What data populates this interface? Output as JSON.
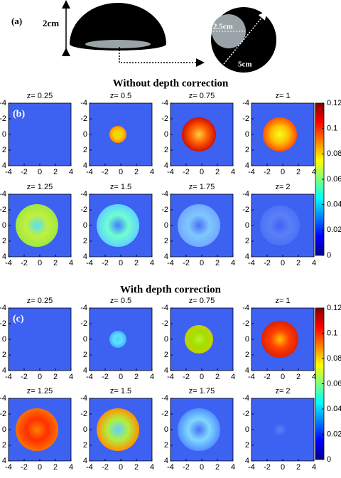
{
  "panel_a": {
    "label": "(a)",
    "height_label": "2cm",
    "inner_label": "2.5cm",
    "outer_label": "5cm"
  },
  "sections": [
    {
      "title": "Without depth correction",
      "label": "(b)",
      "panels": [
        "z= 0.25",
        "z= 0.5",
        "z= 0.75",
        "z= 1",
        "z= 1.25",
        "z= 1.5",
        "z= 1.75",
        "z= 2"
      ]
    },
    {
      "title": "With depth correction",
      "label": "(c)",
      "panels": [
        "z= 0.25",
        "z= 0.5",
        "z= 0.75",
        "z= 1",
        "z= 1.25",
        "z= 1.5",
        "z= 1.75",
        "z= 2"
      ]
    }
  ],
  "axis_lim": [
    -4,
    4
  ],
  "axis_ticks": [
    -4,
    -2,
    0,
    2,
    4
  ],
  "colorbar": {
    "lim": [
      0,
      0.12
    ],
    "ticks": [
      0,
      0.02,
      0.04,
      0.06,
      0.08,
      0.1,
      0.12
    ]
  }
}
